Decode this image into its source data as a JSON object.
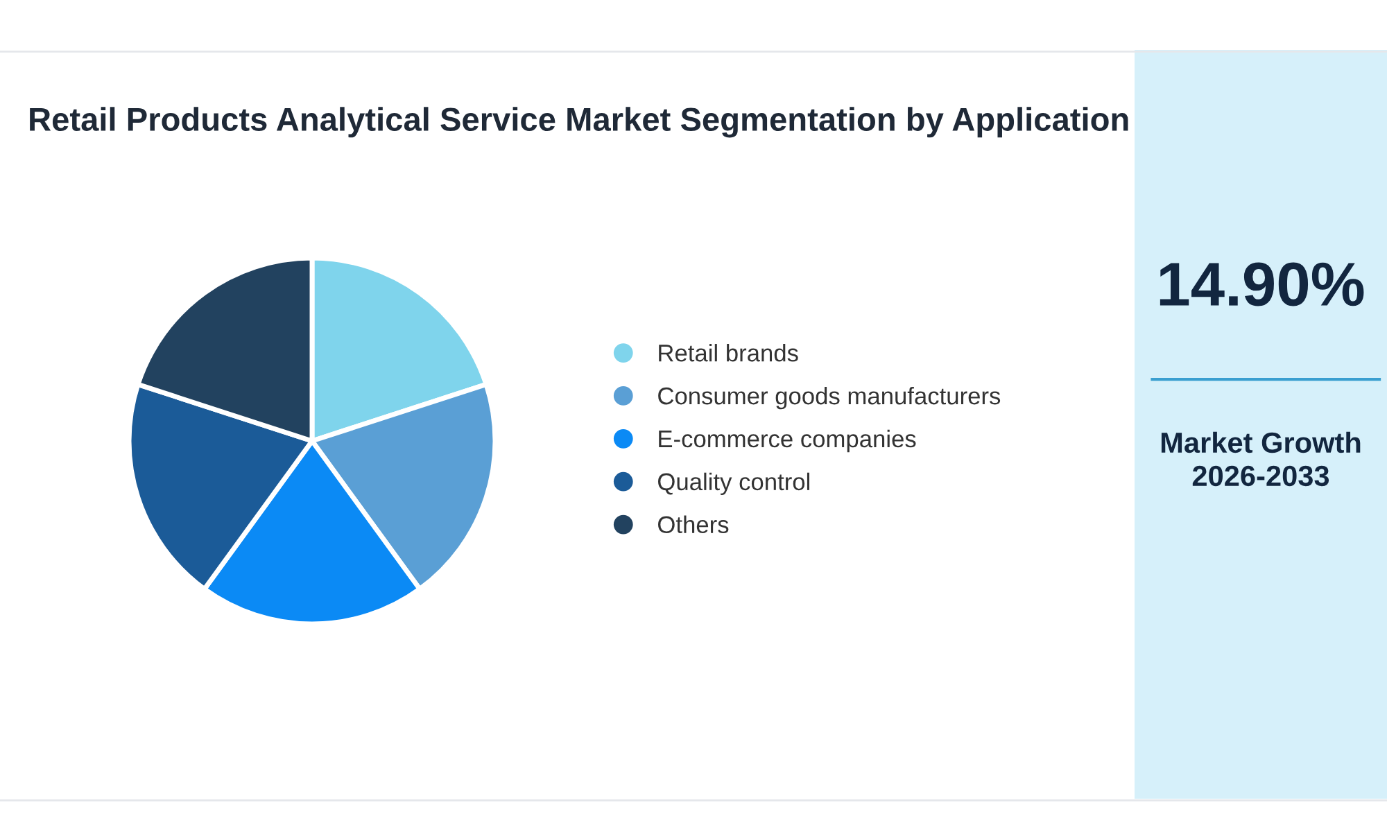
{
  "chart_data": [
    {
      "type": "pie",
      "title": "Retail Products Analytical Service Market Segmentation by Application",
      "categories": [
        "Retail brands",
        "Consumer goods manufacturers",
        "E-commerce companies",
        "Quality control",
        "Others"
      ],
      "values": [
        20,
        20,
        20,
        20,
        20
      ],
      "colors": [
        "#7fd4ec",
        "#5a9fd5",
        "#0b8af5",
        "#1b5b98",
        "#22425f"
      ],
      "legend": "right"
    },
    {
      "type": "other",
      "annotations": [
        "14.90%",
        "Market Growth\n2026-2033"
      ]
    }
  ]
}
